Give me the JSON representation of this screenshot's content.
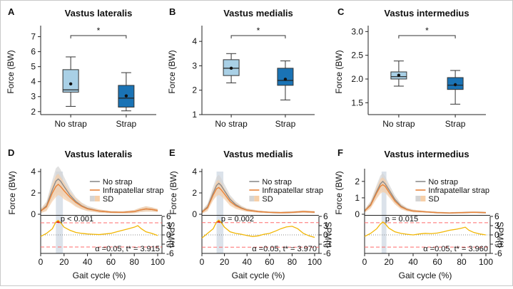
{
  "colors": {
    "no_strap_box": "#a9d0e6",
    "strap_box": "#1a73b5",
    "no_strap_line": "#8c8c8c",
    "no_strap_band": "#d4d4d4",
    "strap_line": "#e8843a",
    "strap_band": "#f6cfa8",
    "spm_line": "#f2b705",
    "threshold_line": "#ff6b6b",
    "cluster_fill": "#e02020",
    "shade": "#cfd8e3"
  },
  "chart_data": [
    {
      "type": "box",
      "panel": "A",
      "title": "Vastus lateralis",
      "ylabel": "Force (BW)",
      "categories": [
        "No strap",
        "Strap"
      ],
      "ylim": [
        1.8,
        7.5
      ],
      "yticks": [
        "2",
        "3",
        "4",
        "5",
        "6",
        "7"
      ],
      "boxes": [
        {
          "whisker_low": 2.35,
          "q1": 3.3,
          "median": 3.45,
          "q3": 4.8,
          "whisker_high": 5.65,
          "mean": 3.85
        },
        {
          "whisker_low": 2.05,
          "q1": 2.3,
          "median": 2.9,
          "q3": 3.75,
          "whisker_high": 4.6,
          "mean": 3.05
        }
      ],
      "significance": "*"
    },
    {
      "type": "box",
      "panel": "B",
      "title": "Vastus medialis",
      "ylabel": "Force (BW)",
      "categories": [
        "No strap",
        "Strap"
      ],
      "ylim": [
        1,
        4.5
      ],
      "yticks": [
        "1",
        "2",
        "3",
        "4"
      ],
      "boxes": [
        {
          "whisker_low": 2.3,
          "q1": 2.6,
          "median": 2.9,
          "q3": 3.25,
          "whisker_high": 3.5,
          "mean": 2.9
        },
        {
          "whisker_low": 1.6,
          "q1": 2.2,
          "median": 2.4,
          "q3": 2.9,
          "whisker_high": 3.2,
          "mean": 2.45
        }
      ],
      "significance": "*"
    },
    {
      "type": "box",
      "panel": "C",
      "title": "Vastus intermedius",
      "ylabel": "Force (BW)",
      "categories": [
        "No strap",
        "Strap"
      ],
      "ylim": [
        1.25,
        3.05
      ],
      "yticks": [
        "1.5",
        "2.0",
        "2.5",
        "3.0"
      ],
      "boxes": [
        {
          "whisker_low": 1.85,
          "q1": 2.0,
          "median": 2.05,
          "q3": 2.15,
          "whisker_high": 2.38,
          "mean": 2.08
        },
        {
          "whisker_low": 1.47,
          "q1": 1.78,
          "median": 1.87,
          "q3": 2.03,
          "whisker_high": 2.18,
          "mean": 1.88
        }
      ],
      "significance": "*"
    },
    {
      "type": "line",
      "panel": "D",
      "title": "Vastus lateralis",
      "ylabel": "Force (BW)",
      "ylim": [
        0,
        4
      ],
      "yticks": [
        "0",
        "2",
        "4"
      ],
      "legend": [
        "No strap",
        "Infrapatellar strap",
        "SD"
      ],
      "shade_range": [
        13,
        19
      ],
      "series": [
        {
          "name": "No strap",
          "x": [
            0,
            5,
            10,
            13,
            15,
            17,
            20,
            25,
            30,
            35,
            40,
            50,
            60,
            70,
            80,
            85,
            90,
            95,
            100
          ],
          "y": [
            0.3,
            0.8,
            2.3,
            3.1,
            3.3,
            3.1,
            2.6,
            1.8,
            1.2,
            0.8,
            0.55,
            0.3,
            0.2,
            0.18,
            0.25,
            0.4,
            0.5,
            0.45,
            0.35
          ],
          "sd": [
            0.2,
            0.4,
            0.9,
            1.2,
            1.2,
            1.1,
            0.9,
            0.6,
            0.4,
            0.3,
            0.25,
            0.15,
            0.1,
            0.1,
            0.15,
            0.2,
            0.25,
            0.2,
            0.15
          ]
        },
        {
          "name": "Infrapatellar strap",
          "x": [
            0,
            5,
            10,
            13,
            15,
            17,
            20,
            25,
            30,
            35,
            40,
            50,
            60,
            70,
            80,
            85,
            90,
            95,
            100
          ],
          "y": [
            0.3,
            0.7,
            2.0,
            2.6,
            2.8,
            2.6,
            2.2,
            1.6,
            1.1,
            0.75,
            0.5,
            0.3,
            0.2,
            0.18,
            0.25,
            0.4,
            0.5,
            0.45,
            0.35
          ],
          "sd": [
            0.2,
            0.4,
            0.8,
            1.0,
            1.0,
            0.9,
            0.8,
            0.5,
            0.4,
            0.3,
            0.2,
            0.15,
            0.1,
            0.1,
            0.15,
            0.2,
            0.25,
            0.2,
            0.15
          ]
        }
      ],
      "spm": {
        "ylabel": "SPM{t}",
        "yticks": [
          "6",
          "3",
          "0",
          "-3",
          "-6"
        ],
        "ylim": [
          -6,
          6
        ],
        "threshold": 3.915,
        "p_label": "p < 0.001",
        "alpha_label": "α =0.05,  t* = 3.915",
        "x": [
          0,
          5,
          10,
          13,
          15,
          17,
          20,
          25,
          30,
          35,
          40,
          45,
          50,
          55,
          60,
          65,
          70,
          75,
          80,
          83,
          86,
          90,
          95,
          100
        ],
        "t": [
          -0.5,
          0.5,
          2.0,
          4.2,
          4.7,
          4.0,
          2.5,
          1.5,
          0.8,
          0.5,
          0.3,
          0.2,
          0.1,
          0.3,
          0.5,
          1.0,
          1.5,
          2.0,
          2.5,
          3.0,
          2.0,
          1.0,
          0.5,
          -0.2
        ],
        "cluster": [
          13,
          18
        ]
      },
      "xlabel": "Gait cycle (%)",
      "xticks": [
        "0",
        "20",
        "40",
        "60",
        "80",
        "100"
      ]
    },
    {
      "type": "line",
      "panel": "E",
      "title": "Vastus medialis",
      "ylabel": "Force (BW)",
      "ylim": [
        0,
        4
      ],
      "yticks": [
        "0",
        "2",
        "4"
      ],
      "legend": [
        "No strap",
        "Infrapatellar strap",
        "SD"
      ],
      "shade_range": [
        13,
        19
      ],
      "series": [
        {
          "name": "No strap",
          "x": [
            0,
            5,
            10,
            13,
            15,
            17,
            20,
            25,
            30,
            35,
            40,
            50,
            60,
            70,
            80,
            90,
            100
          ],
          "y": [
            0.2,
            0.7,
            2.0,
            2.7,
            2.9,
            2.7,
            2.2,
            1.4,
            0.9,
            0.6,
            0.4,
            0.25,
            0.18,
            0.15,
            0.18,
            0.25,
            0.2
          ],
          "sd": [
            0.15,
            0.3,
            0.6,
            0.8,
            0.8,
            0.7,
            0.6,
            0.4,
            0.3,
            0.2,
            0.15,
            0.1,
            0.08,
            0.08,
            0.1,
            0.1,
            0.1
          ]
        },
        {
          "name": "Infrapatellar strap",
          "x": [
            0,
            5,
            10,
            13,
            15,
            17,
            20,
            25,
            30,
            35,
            40,
            50,
            60,
            70,
            80,
            90,
            100
          ],
          "y": [
            0.2,
            0.6,
            1.8,
            2.4,
            2.5,
            2.3,
            1.9,
            1.2,
            0.8,
            0.55,
            0.38,
            0.25,
            0.18,
            0.15,
            0.18,
            0.25,
            0.2
          ],
          "sd": [
            0.15,
            0.3,
            0.5,
            0.7,
            0.7,
            0.6,
            0.5,
            0.4,
            0.3,
            0.2,
            0.15,
            0.1,
            0.08,
            0.08,
            0.1,
            0.1,
            0.1
          ]
        }
      ],
      "spm": {
        "ylabel": "SPM{t}",
        "yticks": [
          "6",
          "3",
          "0",
          "-3",
          "-6"
        ],
        "ylim": [
          -6,
          6
        ],
        "threshold": 3.97,
        "p_label": "p = 0.002",
        "alpha_label": "α =0.05,  t* = 3.970",
        "x": [
          0,
          5,
          10,
          13,
          15,
          17,
          20,
          25,
          30,
          35,
          40,
          45,
          50,
          55,
          60,
          65,
          70,
          75,
          80,
          85,
          90,
          95,
          100
        ],
        "t": [
          -1.0,
          0.5,
          2.0,
          4.2,
          4.8,
          4.1,
          2.5,
          1.0,
          0.5,
          0.2,
          -0.2,
          -0.5,
          -0.3,
          0.2,
          0.5,
          1.2,
          2.0,
          2.6,
          2.8,
          2.0,
          0.5,
          -0.3,
          -0.8
        ],
        "cluster": [
          13,
          18
        ]
      },
      "xlabel": "Gait cycle (%)",
      "xticks": [
        "0",
        "20",
        "40",
        "60",
        "80",
        "100"
      ]
    },
    {
      "type": "line",
      "panel": "F",
      "title": "Vastus intermedius",
      "ylabel": "Force (BW)",
      "ylim": [
        0,
        2.6
      ],
      "yticks": [
        "0",
        "1",
        "2"
      ],
      "legend": [
        "No strap",
        "Infrapatellar strap",
        "SD"
      ],
      "shade_range": [
        14,
        18
      ],
      "series": [
        {
          "name": "No strap",
          "x": [
            0,
            5,
            10,
            13,
            15,
            17,
            20,
            25,
            30,
            35,
            40,
            50,
            60,
            70,
            80,
            90,
            100
          ],
          "y": [
            0.2,
            0.6,
            1.4,
            1.85,
            2.0,
            1.85,
            1.5,
            0.9,
            0.5,
            0.3,
            0.2,
            0.15,
            0.1,
            0.08,
            0.1,
            0.12,
            0.1
          ],
          "sd": [
            0.1,
            0.2,
            0.4,
            0.5,
            0.5,
            0.45,
            0.35,
            0.25,
            0.15,
            0.1,
            0.08,
            0.05,
            0.05,
            0.04,
            0.05,
            0.05,
            0.05
          ]
        },
        {
          "name": "Infrapatellar strap",
          "x": [
            0,
            5,
            10,
            13,
            15,
            17,
            20,
            25,
            30,
            35,
            40,
            50,
            60,
            70,
            80,
            90,
            100
          ],
          "y": [
            0.2,
            0.55,
            1.3,
            1.7,
            1.8,
            1.7,
            1.35,
            0.8,
            0.45,
            0.28,
            0.2,
            0.15,
            0.1,
            0.08,
            0.1,
            0.12,
            0.1
          ],
          "sd": [
            0.1,
            0.2,
            0.35,
            0.45,
            0.45,
            0.4,
            0.3,
            0.2,
            0.15,
            0.1,
            0.08,
            0.05,
            0.05,
            0.04,
            0.05,
            0.05,
            0.05
          ]
        }
      ],
      "spm": {
        "ylabel": "SPM{t}",
        "yticks": [
          "6",
          "3",
          "0",
          "-3",
          "-6"
        ],
        "ylim": [
          -6,
          6
        ],
        "threshold": 3.96,
        "p_label": "p = 0.015",
        "alpha_label": "α =0.05,  t* = 3.960",
        "x": [
          0,
          5,
          10,
          13,
          15,
          17,
          20,
          25,
          30,
          35,
          40,
          45,
          50,
          55,
          60,
          65,
          70,
          75,
          80,
          83,
          86,
          90,
          95,
          100
        ],
        "t": [
          -0.5,
          0.5,
          2.0,
          3.5,
          4.2,
          3.6,
          2.2,
          1.0,
          0.5,
          0.2,
          0.0,
          0.3,
          0.5,
          0.4,
          0.6,
          1.0,
          1.5,
          1.8,
          2.2,
          2.5,
          1.5,
          0.8,
          0.3,
          0.0
        ],
        "cluster": [
          14,
          16.5
        ]
      },
      "xlabel": "Gait cycle (%)",
      "xticks": [
        "0",
        "20",
        "40",
        "60",
        "80",
        "100"
      ]
    }
  ]
}
